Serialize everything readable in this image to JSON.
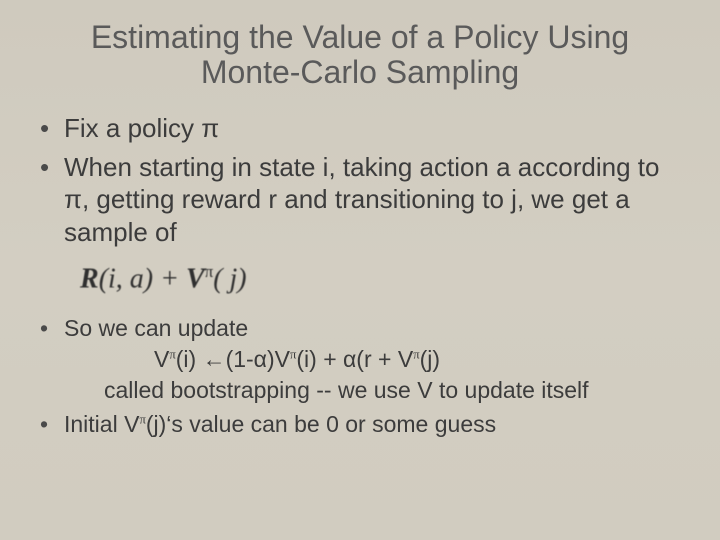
{
  "background": {
    "gradient_top": "#cfcabe",
    "gradient_bottom": "#d1ccc0"
  },
  "typography": {
    "title_fontsize": 32,
    "body_top_fontsize": 26,
    "body_bottom_fontsize": 23,
    "title_color": "#5a5a5a",
    "body_color": "#3c3c3c",
    "bullet_color": "#4a4a4a",
    "font_family": "Arial"
  },
  "title": "Estimating the Value of a Policy Using Monte-Carlo Sampling",
  "bullets_top": {
    "b1": "Fix a policy π",
    "b2": "When starting in state i, taking action a according to π, getting reward r and transitioning to j, we get a sample of"
  },
  "formula": {
    "R": "R",
    "args1": "(i, a)",
    "plus": " + ",
    "V": "V",
    "sup": "π",
    "args2": "( j)"
  },
  "bullets_bottom": {
    "b3": "So we can update",
    "update_eq": "Vπ(i) ←(1-α)Vπ(i) + α(r + Vπ(j)",
    "update_parts": {
      "v1": "V",
      "pi": "π",
      "lhs": "(i) ",
      "arrow": "←",
      "one_minus": "(1-α)",
      "v2": "V",
      "mid": "(i) + α(r + ",
      "v3": "V",
      "rhs": "(j)"
    },
    "bootstrap": "called bootstrapping -- we use V to update itself",
    "b4_pre": "Initial V",
    "b4_post": "(j)‘s value can be 0 or some guess"
  }
}
